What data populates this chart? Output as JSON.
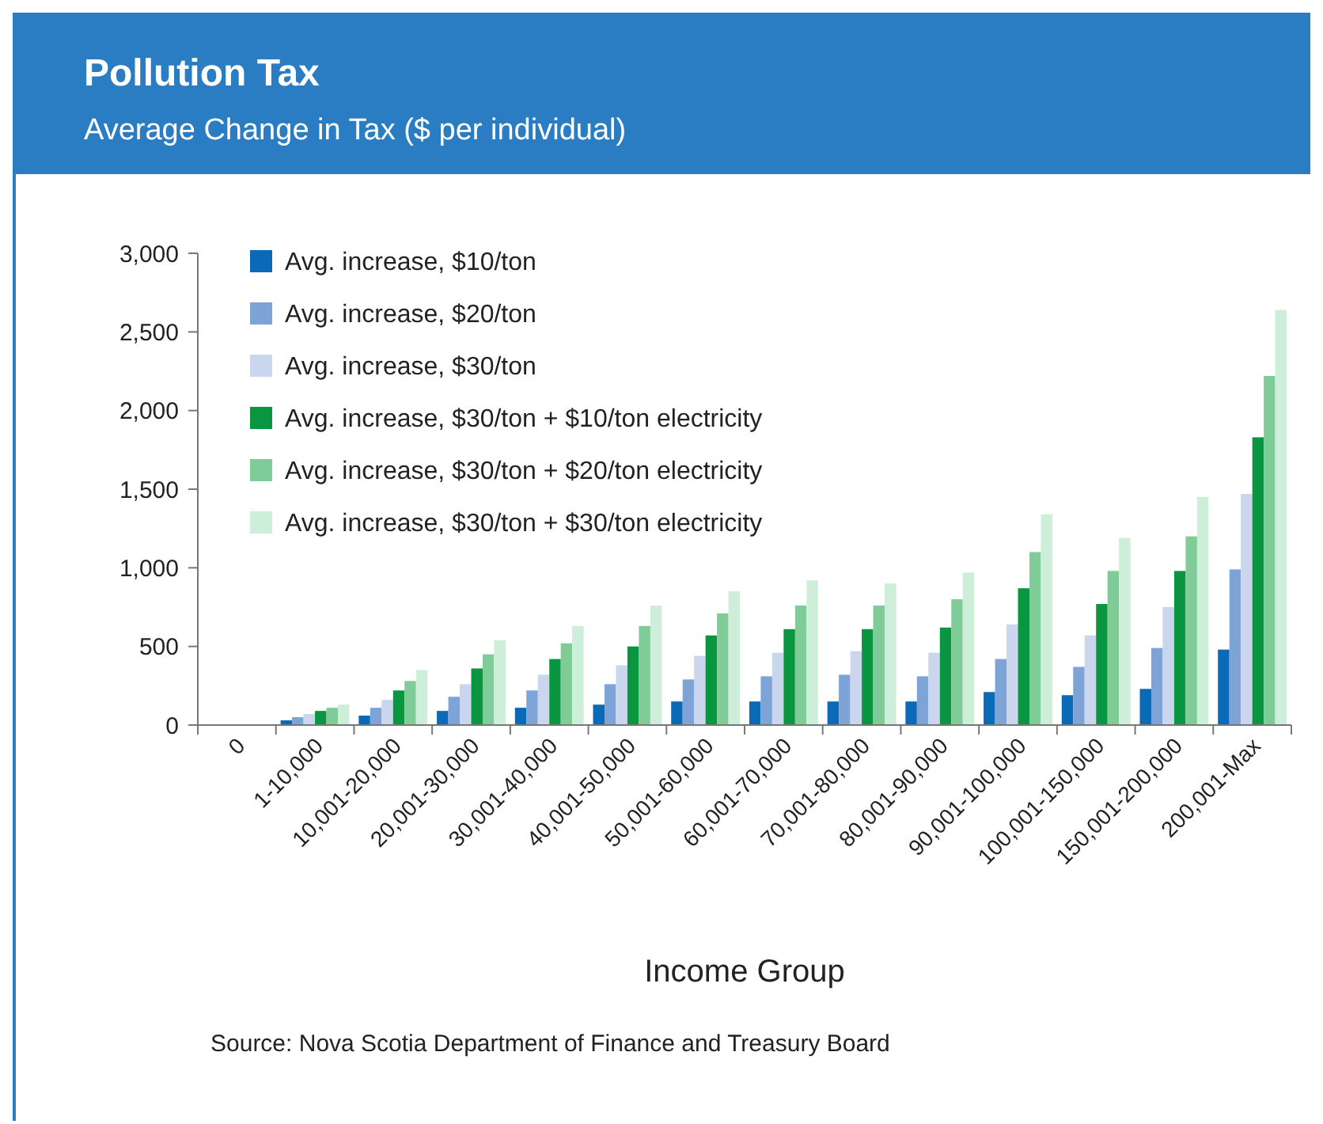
{
  "chart_data": {
    "type": "bar",
    "title": "Pollution Tax",
    "subtitle": "Average Change in Tax ($ per individual)",
    "xlabel": "Income Group",
    "categories": [
      "0",
      "1-10,000",
      "10,001-20,000",
      "20,001-30,000",
      "30,001-40,000",
      "40,001-50,000",
      "50,001-60,000",
      "60,001-70,000",
      "70,001-80,000",
      "80,001-90,000",
      "90,001-100,000",
      "100,001-150,000",
      "150,001-200,000",
      "200,001-Max"
    ],
    "series": [
      {
        "name": "Avg. increase, $10/ton",
        "color": "#0a6ab8",
        "values": [
          0,
          30,
          60,
          90,
          110,
          130,
          150,
          150,
          150,
          150,
          210,
          190,
          230,
          480
        ]
      },
      {
        "name": "Avg. increase, $20/ton",
        "color": "#7ea3d6",
        "values": [
          0,
          50,
          110,
          180,
          220,
          260,
          290,
          310,
          320,
          310,
          420,
          370,
          490,
          990
        ]
      },
      {
        "name": "Avg. increase, $30/ton",
        "color": "#c9d6ee",
        "values": [
          0,
          70,
          160,
          260,
          320,
          380,
          440,
          460,
          470,
          460,
          640,
          570,
          750,
          1470
        ]
      },
      {
        "name": "Avg. increase, $30/ton + $10/ton electricity",
        "color": "#0a9640",
        "values": [
          0,
          90,
          220,
          360,
          420,
          500,
          570,
          610,
          610,
          620,
          870,
          770,
          980,
          1830
        ]
      },
      {
        "name": "Avg. increase, $30/ton + $20/ton electricity",
        "color": "#7fcc98",
        "values": [
          0,
          110,
          280,
          450,
          520,
          630,
          710,
          760,
          760,
          800,
          1100,
          980,
          1200,
          2220
        ]
      },
      {
        "name": "Avg. increase, $30/ton + $30/ton electricity",
        "color": "#cdeed8",
        "values": [
          0,
          130,
          350,
          540,
          630,
          760,
          850,
          920,
          900,
          970,
          1340,
          1190,
          1450,
          2640
        ]
      }
    ],
    "ylim": [
      0,
      3000
    ],
    "yticks": [
      0,
      {
        "value": 500,
        "label": "500"
      },
      {
        "value": 1000,
        "label": "1,000"
      },
      {
        "value": 1500,
        "label": "1,500"
      },
      {
        "value": 2000,
        "label": "2,000"
      },
      {
        "value": 2500,
        "label": "2,500"
      },
      {
        "value": 3000,
        "label": "3,000"
      }
    ],
    "grid": false,
    "legend": "top left",
    "annotations": [
      "Source: Nova Scotia Department of Finance and Treasury Board"
    ]
  }
}
